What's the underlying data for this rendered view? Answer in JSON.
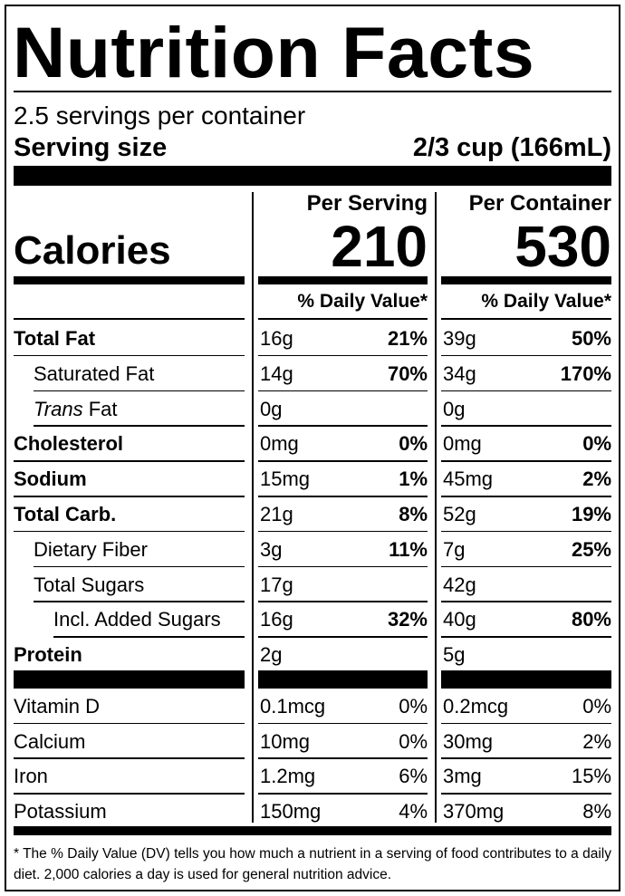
{
  "title": "Nutrition Facts",
  "servings": "2.5 servings per container",
  "serving_size_label": "Serving size",
  "serving_size": "2/3 cup (166mL)",
  "calories_label": "Calories",
  "columns": [
    {
      "heading": "Per Serving",
      "calories": "210",
      "dv_heading": "% Daily Value*"
    },
    {
      "heading": "Per Container",
      "calories": "530",
      "dv_heading": "% Daily Value*"
    }
  ],
  "nutrients": [
    {
      "name": "Total Fat",
      "per_serving": [
        "16g",
        "21%"
      ],
      "per_container": [
        "39g",
        "50%"
      ]
    },
    {
      "name": "Saturated Fat",
      "per_serving": [
        "14g",
        "70%"
      ],
      "per_container": [
        "34g",
        "170%"
      ]
    },
    {
      "name_italic": "Trans",
      "name": "Fat",
      "per_serving": [
        "0g"
      ],
      "per_container": [
        "0g"
      ]
    },
    {
      "name": "Cholesterol",
      "per_serving": [
        "0mg",
        "0%"
      ],
      "per_container": [
        "0mg",
        "0%"
      ]
    },
    {
      "name": "Sodium",
      "per_serving": [
        "15mg",
        "1%"
      ],
      "per_container": [
        "45mg",
        "2%"
      ]
    },
    {
      "name": "Total Carb.",
      "per_serving": [
        "21g",
        "8%"
      ],
      "per_container": [
        "52g",
        "19%"
      ]
    },
    {
      "name": "Dietary Fiber",
      "per_serving": [
        "3g",
        "11%"
      ],
      "per_container": [
        "7g",
        "25%"
      ]
    },
    {
      "name": "Total Sugars",
      "per_serving": [
        "17g"
      ],
      "per_container": [
        "42g"
      ]
    },
    {
      "name": "Incl. Added Sugars",
      "per_serving": [
        "16g",
        "32%"
      ],
      "per_container": [
        "40g",
        "80%"
      ]
    },
    {
      "name": "Protein",
      "per_serving": [
        "2g"
      ],
      "per_container": [
        "5g"
      ]
    }
  ],
  "vitamins": [
    {
      "name": "Vitamin D",
      "per_serving": [
        "0.1mcg",
        "0%"
      ],
      "per_container": [
        "0.2mcg",
        "0%"
      ]
    },
    {
      "name": "Calcium",
      "per_serving": [
        "10mg",
        "0%"
      ],
      "per_container": [
        "30mg",
        "2%"
      ]
    },
    {
      "name": "Iron",
      "per_serving": [
        "1.2mg",
        "6%"
      ],
      "per_container": [
        "3mg",
        "15%"
      ]
    },
    {
      "name": "Potassium",
      "per_serving": [
        "150mg",
        "4%"
      ],
      "per_container": [
        "370mg",
        "8%"
      ]
    }
  ],
  "footnote": "* The % Daily Value (DV) tells you how much a nutrient in a serving of food contributes to a daily diet. 2,000 calories a day is used for general nutrition advice."
}
